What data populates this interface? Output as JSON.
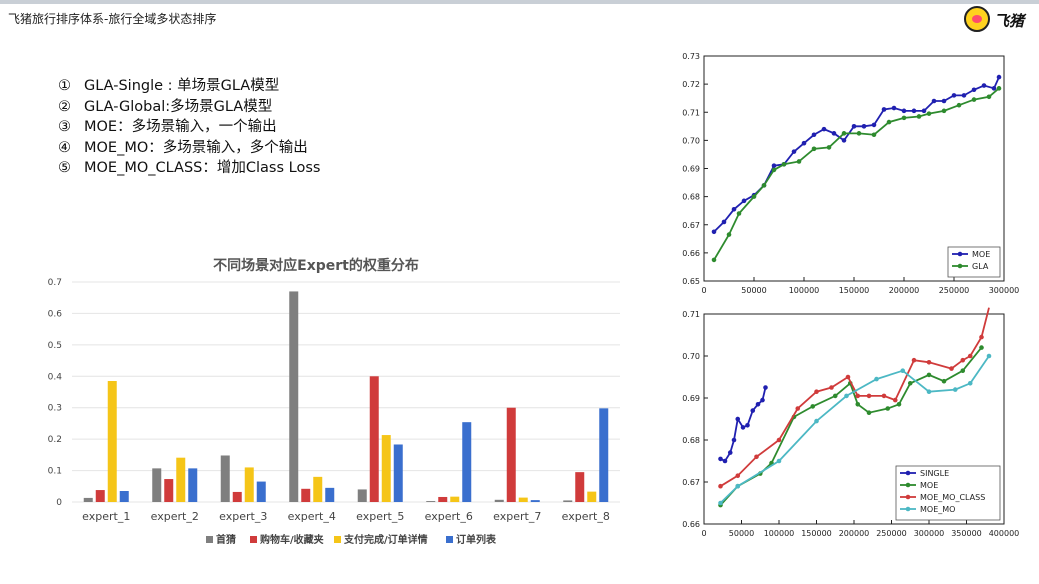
{
  "header": {
    "title": "飞猪旅行排序体系-旅行全域多状态排序",
    "logo_text": "飞猪"
  },
  "bullets": [
    {
      "num": "①",
      "text": "GLA-Single : 单场景GLA模型"
    },
    {
      "num": "②",
      "text": "GLA-Global:多场景GLA模型"
    },
    {
      "num": "③",
      "text": "MOE：多场景输入，一个输出"
    },
    {
      "num": "④",
      "text": "MOE_MO：多场景输入，多个输出"
    },
    {
      "num": "⑤",
      "text": "MOE_MO_CLASS：增加Class Loss"
    }
  ],
  "chart_data": [
    {
      "type": "bar",
      "title": "不同场景对应Expert的权重分布",
      "categories": [
        "expert_1",
        "expert_2",
        "expert_3",
        "expert_4",
        "expert_5",
        "expert_6",
        "expert_7",
        "expert_8"
      ],
      "ylim": [
        0,
        0.7
      ],
      "yticks": [
        "0",
        "0.1",
        "0.2",
        "0.3",
        "0.4",
        "0.5",
        "0.6",
        "0.7"
      ],
      "legend_position": "bottom",
      "grid": true,
      "series": [
        {
          "name": "首猜",
          "color": "#7f7f7f",
          "values": [
            0.013,
            0.107,
            0.148,
            0.67,
            0.04,
            0.003,
            0.007,
            0.005
          ]
        },
        {
          "name": "购物车/收藏夹",
          "color": "#d03b3b",
          "values": [
            0.038,
            0.073,
            0.032,
            0.042,
            0.4,
            0.016,
            0.3,
            0.095
          ]
        },
        {
          "name": "支付完成/订单详情",
          "color": "#f5c518",
          "values": [
            0.385,
            0.141,
            0.11,
            0.08,
            0.213,
            0.017,
            0.014,
            0.033
          ]
        },
        {
          "name": "订单列表",
          "color": "#3a6fce",
          "values": [
            0.035,
            0.107,
            0.065,
            0.045,
            0.183,
            0.254,
            0.006,
            0.298
          ]
        }
      ]
    },
    {
      "type": "line",
      "xlim": [
        0,
        300000
      ],
      "ylim": [
        0.65,
        0.73
      ],
      "xticks": [
        "0",
        "50000",
        "100000",
        "150000",
        "200000",
        "250000",
        "300000"
      ],
      "yticks": [
        "0.65",
        "0.66",
        "0.67",
        "0.68",
        "0.69",
        "0.70",
        "0.71",
        "0.72",
        "0.73"
      ],
      "legend_position": "bottom-right",
      "series": [
        {
          "name": "MOE",
          "color": "#2020b0",
          "x": [
            10000,
            20000,
            30000,
            40000,
            50000,
            60000,
            70000,
            80000,
            90000,
            100000,
            110000,
            120000,
            130000,
            140000,
            150000,
            160000,
            170000,
            180000,
            190000,
            200000,
            210000,
            220000,
            230000,
            240000,
            250000,
            260000,
            270000,
            280000,
            290000,
            295000
          ],
          "y": [
            0.6675,
            0.671,
            0.6755,
            0.6785,
            0.6805,
            0.684,
            0.691,
            0.6915,
            0.696,
            0.699,
            0.702,
            0.704,
            0.7025,
            0.7,
            0.705,
            0.705,
            0.7055,
            0.711,
            0.7115,
            0.7105,
            0.7105,
            0.7105,
            0.714,
            0.714,
            0.716,
            0.716,
            0.718,
            0.7195,
            0.7185,
            0.7225
          ]
        },
        {
          "name": "GLA",
          "color": "#2e8b2e",
          "x": [
            10000,
            25000,
            35000,
            50000,
            60000,
            70000,
            80000,
            95000,
            110000,
            125000,
            140000,
            155000,
            170000,
            185000,
            200000,
            215000,
            225000,
            240000,
            255000,
            270000,
            285000,
            295000
          ],
          "y": [
            0.6575,
            0.6665,
            0.674,
            0.68,
            0.684,
            0.6895,
            0.6915,
            0.6925,
            0.697,
            0.6975,
            0.7025,
            0.7025,
            0.702,
            0.7065,
            0.708,
            0.7085,
            0.7095,
            0.7105,
            0.7125,
            0.7145,
            0.7155,
            0.7185
          ]
        }
      ]
    },
    {
      "type": "line",
      "xlim": [
        0,
        400000
      ],
      "ylim": [
        0.66,
        0.71
      ],
      "xticks": [
        "0",
        "50000",
        "100000",
        "150000",
        "200000",
        "250000",
        "300000",
        "350000",
        "400000"
      ],
      "yticks": [
        "0.66",
        "0.67",
        "0.68",
        "0.69",
        "0.70",
        "0.71"
      ],
      "legend_position": "bottom-right",
      "series": [
        {
          "name": "SINGLE",
          "color": "#2020b0",
          "x": [
            22000,
            28000,
            35000,
            40000,
            45000,
            52000,
            58000,
            65000,
            72000,
            78000,
            82000
          ],
          "y": [
            0.6755,
            0.675,
            0.677,
            0.68,
            0.685,
            0.683,
            0.6835,
            0.687,
            0.6885,
            0.6895,
            0.6925
          ]
        },
        {
          "name": "MOE",
          "color": "#2e8b2e",
          "x": [
            22000,
            45000,
            75000,
            90000,
            120000,
            145000,
            175000,
            195000,
            205000,
            220000,
            245000,
            260000,
            275000,
            300000,
            320000,
            345000,
            370000
          ],
          "y": [
            0.6645,
            0.669,
            0.672,
            0.6745,
            0.6855,
            0.688,
            0.6905,
            0.6935,
            0.6885,
            0.6865,
            0.6875,
            0.6885,
            0.6935,
            0.6955,
            0.694,
            0.6965,
            0.702
          ]
        },
        {
          "name": "MOE_MO_CLASS",
          "color": "#d03b3b",
          "x": [
            22000,
            45000,
            70000,
            100000,
            125000,
            150000,
            170000,
            192000,
            205000,
            220000,
            240000,
            255000,
            280000,
            300000,
            330000,
            345000,
            355000,
            370000,
            380000
          ],
          "y": [
            0.669,
            0.6715,
            0.676,
            0.68,
            0.6875,
            0.6915,
            0.6925,
            0.695,
            0.6905,
            0.6905,
            0.6905,
            0.6895,
            0.699,
            0.6985,
            0.697,
            0.699,
            0.7,
            0.7045,
            0.7115
          ]
        },
        {
          "name": "MOE_MO",
          "color": "#4cb8c4",
          "x": [
            22000,
            45000,
            100000,
            150000,
            190000,
            230000,
            265000,
            300000,
            335000,
            355000,
            380000
          ],
          "y": [
            0.665,
            0.669,
            0.675,
            0.6845,
            0.6905,
            0.6945,
            0.6965,
            0.6915,
            0.692,
            0.6935,
            0.7
          ]
        }
      ]
    }
  ]
}
